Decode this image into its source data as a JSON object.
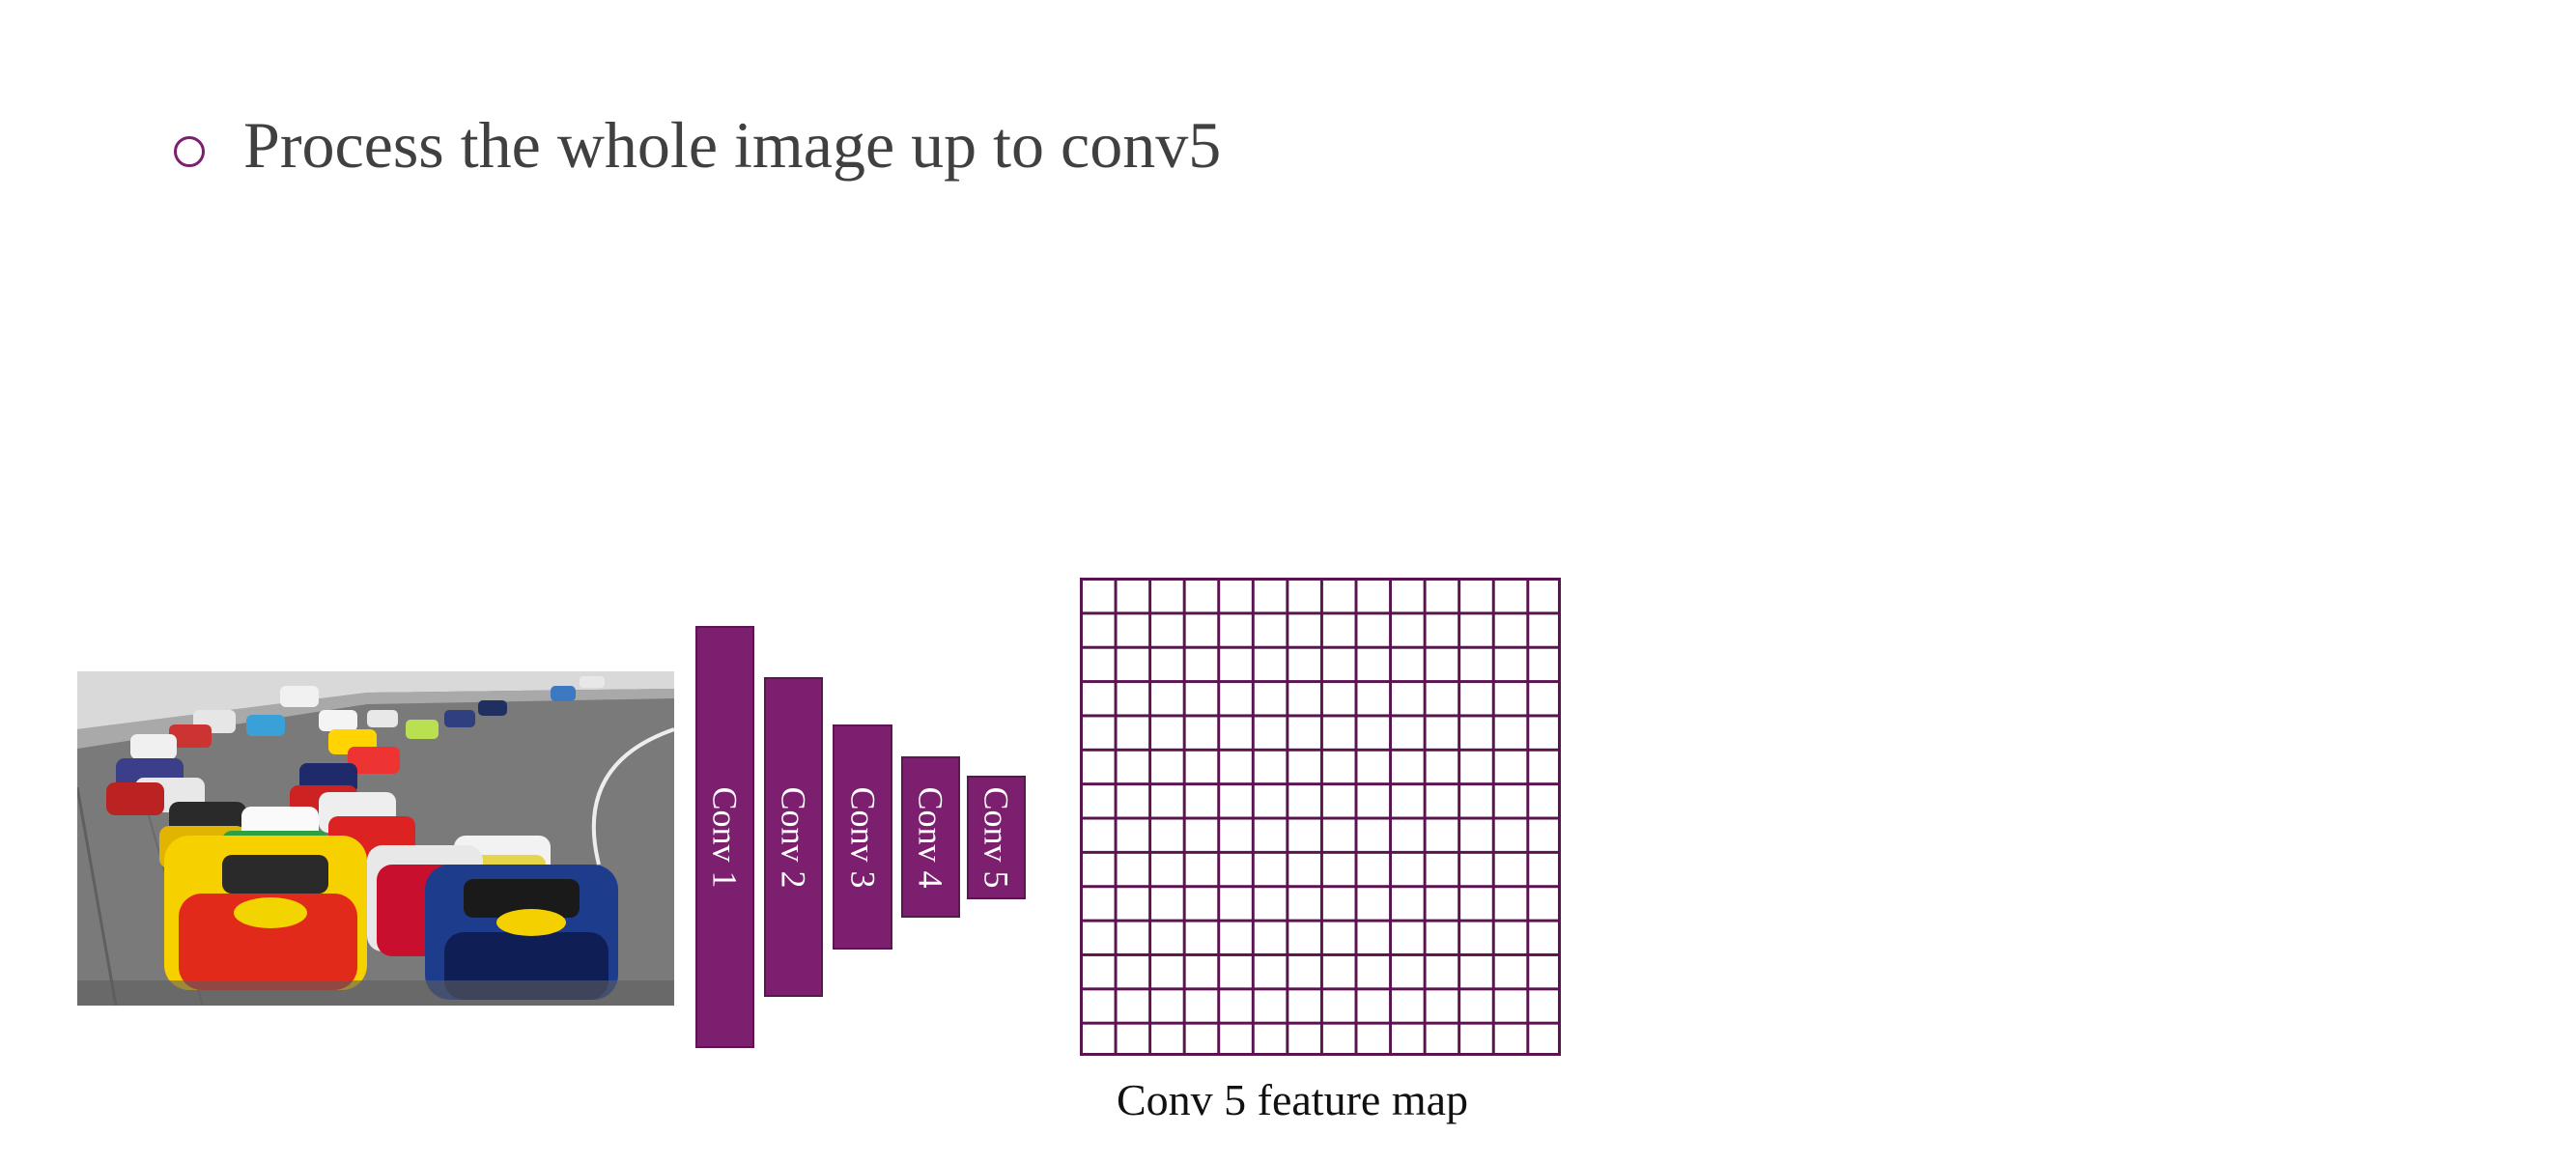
{
  "slide": {
    "bullet_text": "Process the whole image up to conv5"
  },
  "photo": {
    "subject": "race cars on track"
  },
  "network": {
    "layers": [
      {
        "label": "Conv 1"
      },
      {
        "label": "Conv 2"
      },
      {
        "label": "Conv 3"
      },
      {
        "label": "Conv 4"
      },
      {
        "label": "Conv 5"
      }
    ]
  },
  "feature_map": {
    "caption": "Conv 5 feature map",
    "rows": 14,
    "cols": 14
  },
  "colors": {
    "accent": "#7b1f6e",
    "grid_line": "#5a1550",
    "text": "#404040"
  }
}
